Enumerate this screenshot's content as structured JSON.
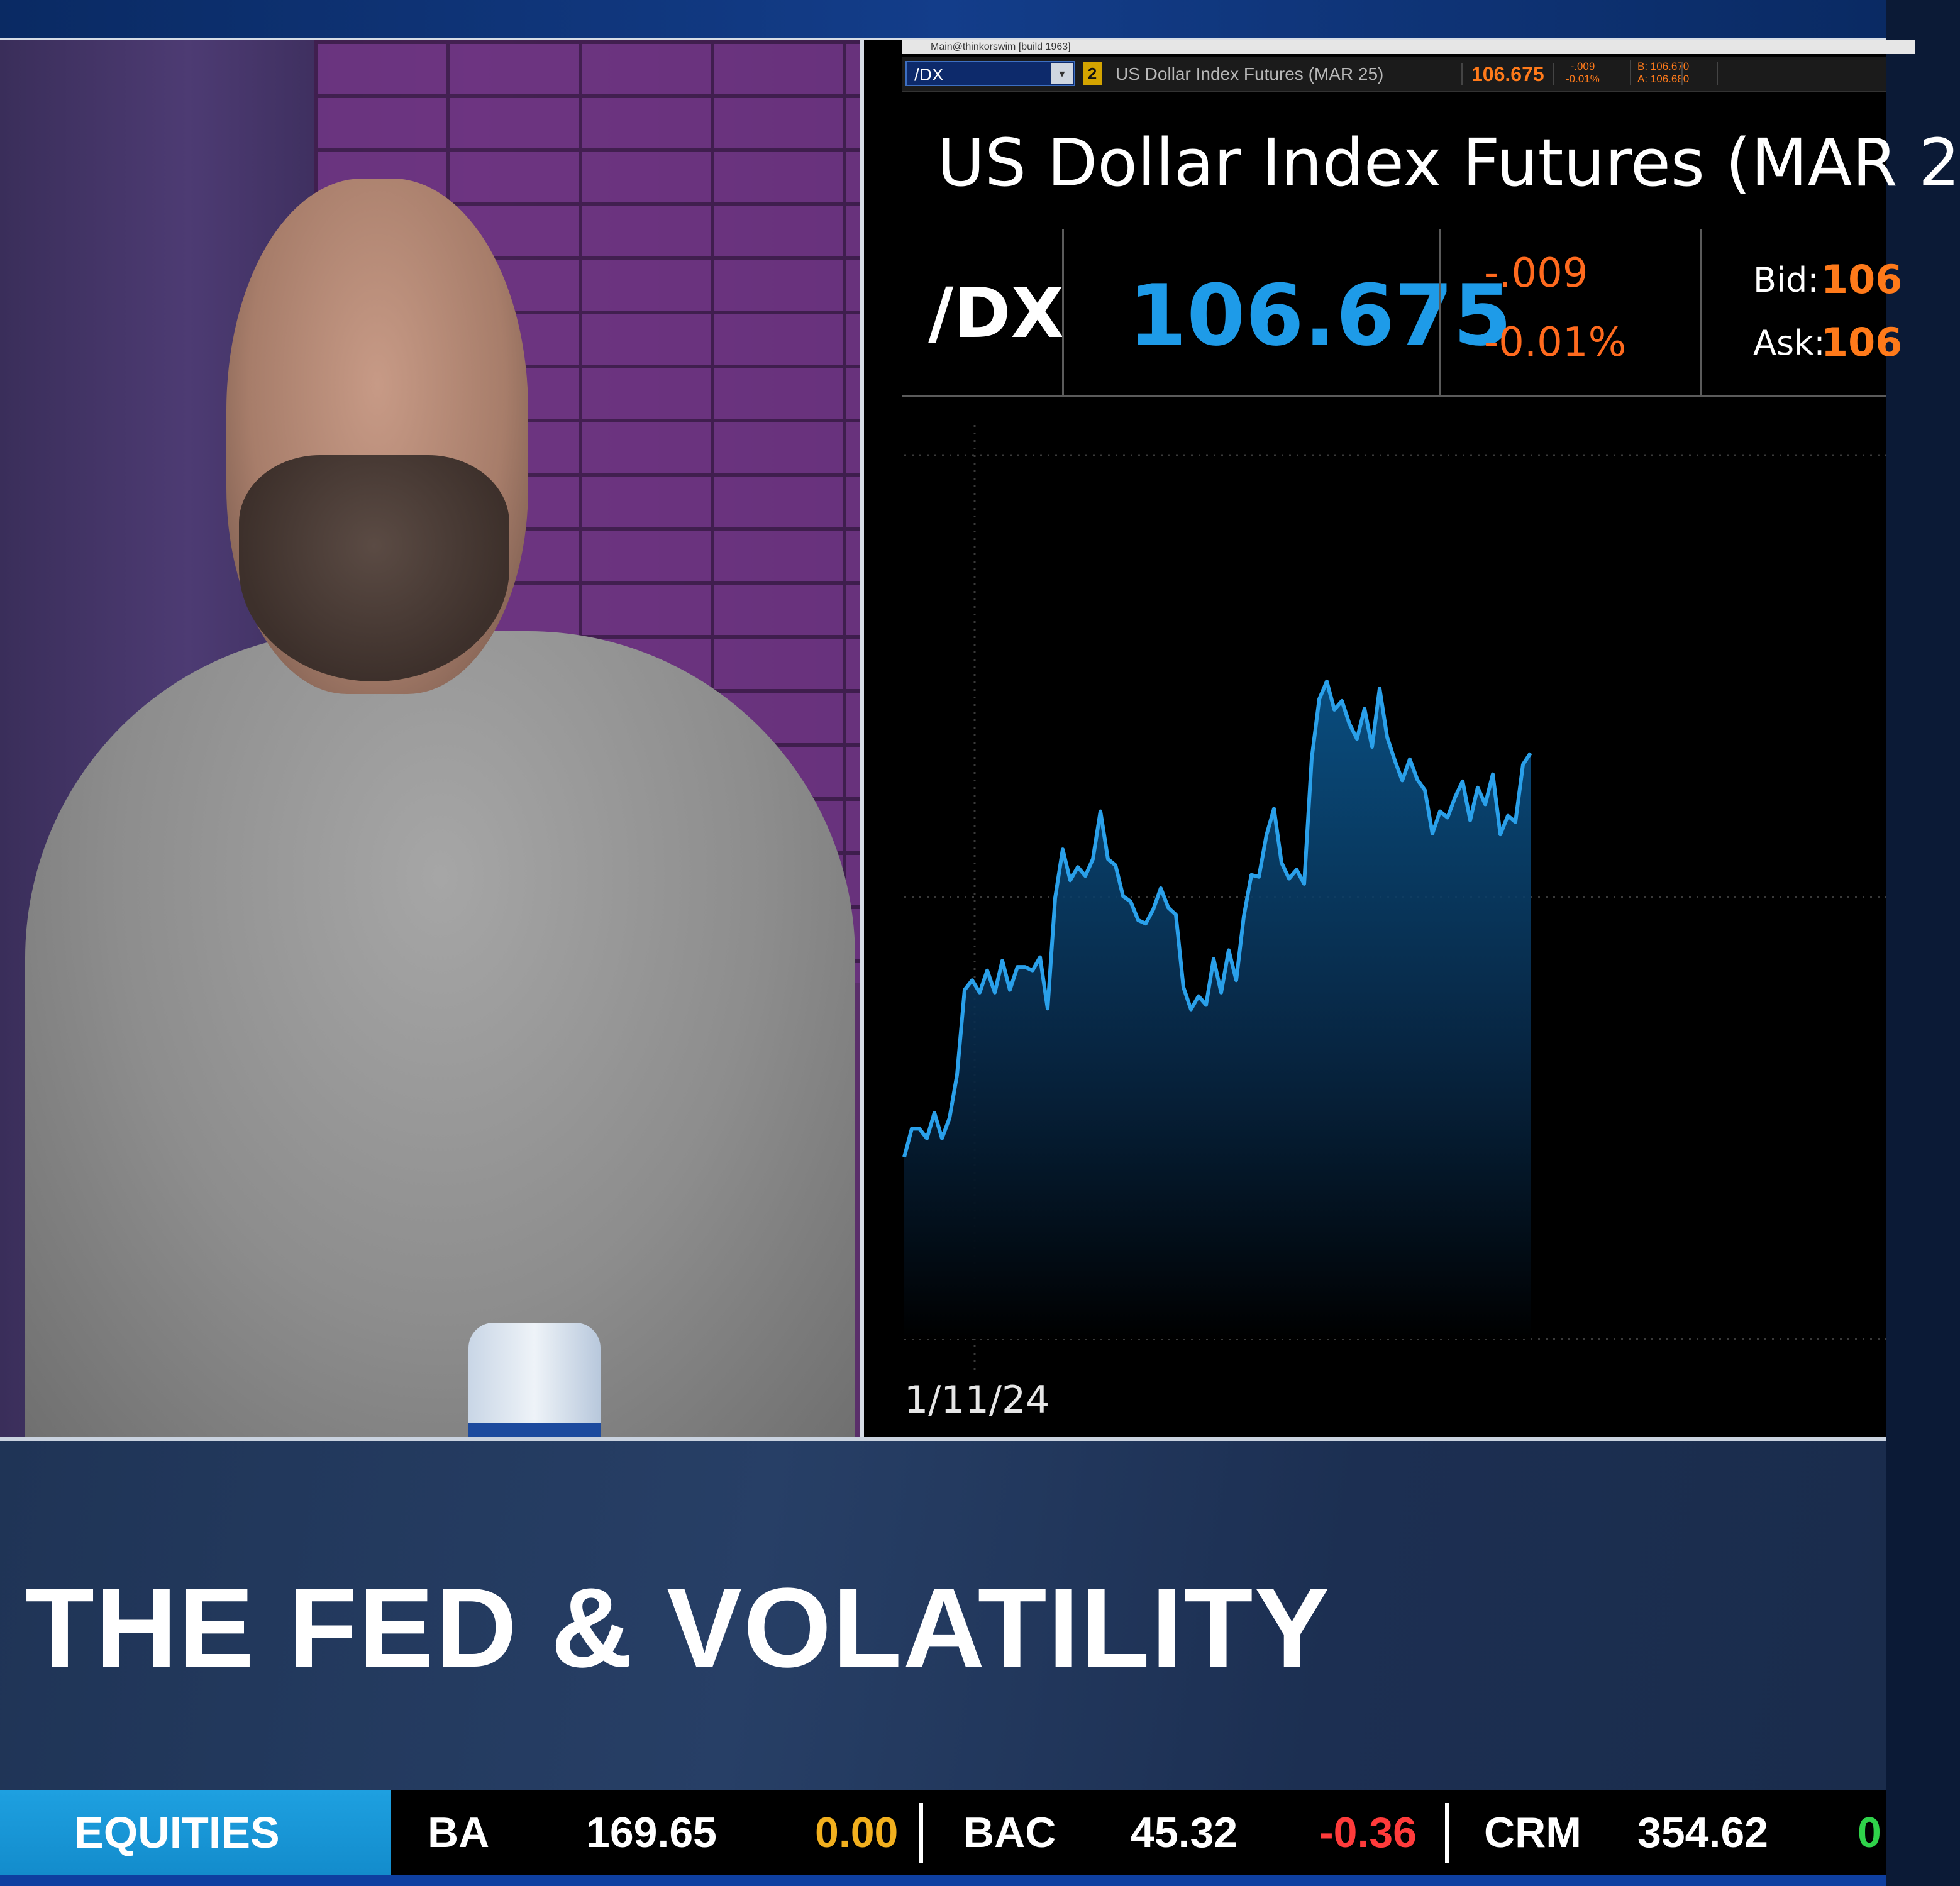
{
  "chart_panel": {
    "window_title": "Main@thinkorswim [build 1963]",
    "toolbar": {
      "symbol_input": "/DX",
      "link_badge": "2",
      "description": "US Dollar Index Futures (MAR 25)",
      "last": "106.675",
      "net_change": "-.009",
      "pct_change": "-0.01%",
      "bid": "B: 106.670",
      "ask": "A: 106.680"
    },
    "title": "US Dollar Index Futures (MAR 2",
    "quote": {
      "symbol": "/DX",
      "last": "106.675",
      "net_change": "-.009",
      "pct_change": "-0.01%",
      "bid_label": "Bid:",
      "bid_value": "106",
      "ask_label": "Ask:",
      "ask_value": "106"
    },
    "x_axis_label": "1/11/24"
  },
  "chart_data": {
    "type": "area",
    "title": "US Dollar Index Futures (MAR 2",
    "xlabel": "",
    "ylabel": "",
    "x_tick_labels": [
      "1/11/24"
    ],
    "y_range_visible": [
      0,
      100
    ],
    "grid": "dotted horizontal",
    "line_color": "#2aa0ea",
    "fill_color": "#0a4a7a",
    "series": [
      {
        "values": [
          20.6,
          23.8,
          23.8,
          22.7,
          25.6,
          22.7,
          25.0,
          29.9,
          39.5,
          40.6,
          39.2,
          41.7,
          39.2,
          42.8,
          39.5,
          42.1,
          42.1,
          41.7,
          43.2,
          37.4,
          49.9,
          55.4,
          51.9,
          53.4,
          52.4,
          54.3,
          59.7,
          54.3,
          53.6,
          50.1,
          49.5,
          47.4,
          47.0,
          48.6,
          51.0,
          48.8,
          48.0,
          39.8,
          37.3,
          38.8,
          37.8,
          43.0,
          39.2,
          44.0,
          40.6,
          47.8,
          52.5,
          52.3,
          57.0,
          60.0,
          53.9,
          52.1,
          53.1,
          51.5,
          65.7,
          72.4,
          74.4,
          71.2,
          72.2,
          69.6,
          67.9,
          71.3,
          67.0,
          73.6,
          68.1,
          65.5,
          63.2,
          65.6,
          63.3,
          62.1,
          57.2,
          59.7,
          59.0,
          61.3,
          63.1,
          58.7,
          62.4,
          60.5,
          63.9,
          57.1,
          59.2,
          58.5,
          65.0,
          66.3
        ]
      }
    ]
  },
  "lower_third": {
    "headline": "THE FED & VOLATILITY"
  },
  "ticker": {
    "label": "EQUITIES",
    "items": [
      {
        "symbol": "BA",
        "price": "169.65",
        "change": "0.00"
      },
      {
        "symbol": "BAC",
        "price": "45.32",
        "change": "-0.36"
      },
      {
        "symbol": "CRM",
        "price": "354.62",
        "change": "0"
      }
    ]
  },
  "colors": {
    "accent_blue": "#1e9be8",
    "negative_orange": "#ff6a1e",
    "ticker_label_bg": "#1ea0e0",
    "ticker_negative": "#ff3b3b",
    "ticker_neutral": "#f2b01e",
    "ticker_positive": "#2fd24a"
  }
}
